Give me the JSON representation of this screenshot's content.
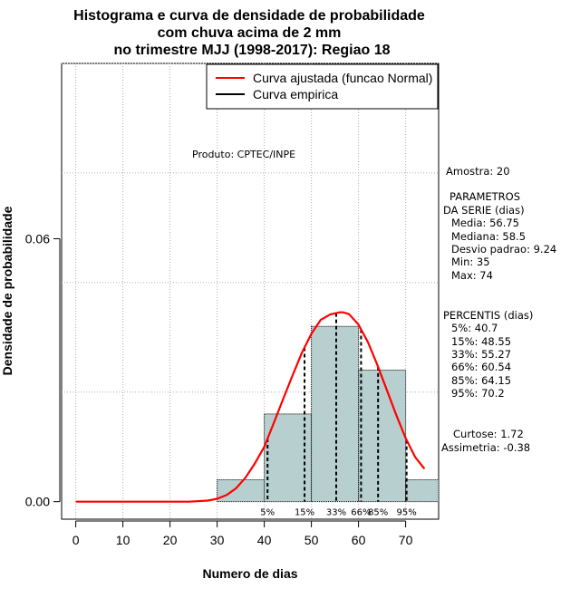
{
  "chart_data": {
    "type": "bar",
    "title_lines": [
      "Histograma e curva de densidade de probabilidade",
      "com chuva acima de 2 mm",
      "no trimestre MJJ (1998-2017): Regiao 18"
    ],
    "xlabel": "Numero de dias",
    "ylabel": "Densidade de probabilidade",
    "xlim": [
      -3,
      77
    ],
    "ylim": [
      -0.004,
      0.1
    ],
    "x_ticks": [
      "0",
      "10",
      "20",
      "30",
      "40",
      "50",
      "60",
      "70"
    ],
    "y_ticks": [
      "0.00",
      "0.06"
    ],
    "grid": true,
    "legend_position": "top-right",
    "histogram": {
      "bins": [
        [
          30,
          40
        ],
        [
          40,
          50
        ],
        [
          50,
          60
        ],
        [
          60,
          70
        ],
        [
          70,
          80
        ]
      ],
      "density": [
        0.005,
        0.02,
        0.04,
        0.03,
        0.005
      ],
      "color": "#b7cfcf"
    },
    "series": [
      {
        "name": "Curva ajustada (funcao Normal)",
        "color": "#ff0000",
        "x": [
          0,
          10,
          20,
          24,
          28,
          30,
          32,
          34,
          36,
          38,
          40,
          42,
          44,
          46,
          48,
          50,
          52,
          54,
          56,
          56.75,
          58,
          60,
          62,
          64,
          66,
          68,
          70,
          72,
          74
        ],
        "y": [
          0.0,
          0.0,
          0.0,
          0.0,
          0.00023,
          0.00066,
          0.00149,
          0.00303,
          0.00544,
          0.00871,
          0.0125,
          0.0179,
          0.0234,
          0.0288,
          0.034,
          0.0383,
          0.0415,
          0.0427,
          0.0432,
          0.0432,
          0.0428,
          0.0404,
          0.0364,
          0.0312,
          0.0255,
          0.0198,
          0.0145,
          0.0102,
          0.0075
        ]
      },
      {
        "name": "Curva empirica",
        "color": "#000000"
      }
    ],
    "percentile_lines": [
      {
        "label": "5%",
        "x": 40.7
      },
      {
        "label": "15%",
        "x": 48.55
      },
      {
        "label": "33%",
        "x": 55.27
      },
      {
        "label": "66%",
        "x": 60.54
      },
      {
        "label": "85%",
        "x": 64.15
      },
      {
        "label": "95%",
        "x": 70.2
      }
    ],
    "annotations": {
      "produto": "Produto: CPTEC/INPE",
      "side_panel": [
        "Amostra: 20",
        "PARAMETROS",
        "DA SERIE (dias)",
        "Media: 56.75",
        "Mediana: 58.5",
        "Desvio padrao: 9.24",
        "Min: 35",
        "Max: 74",
        "PERCENTIS (dias)",
        "5%: 40.7",
        "15%: 48.55",
        "33%: 55.27",
        "66%: 60.54",
        "85%: 64.15",
        "95%: 70.2",
        "Curtose: 1.72",
        "Assimetria: -0.38"
      ]
    }
  }
}
